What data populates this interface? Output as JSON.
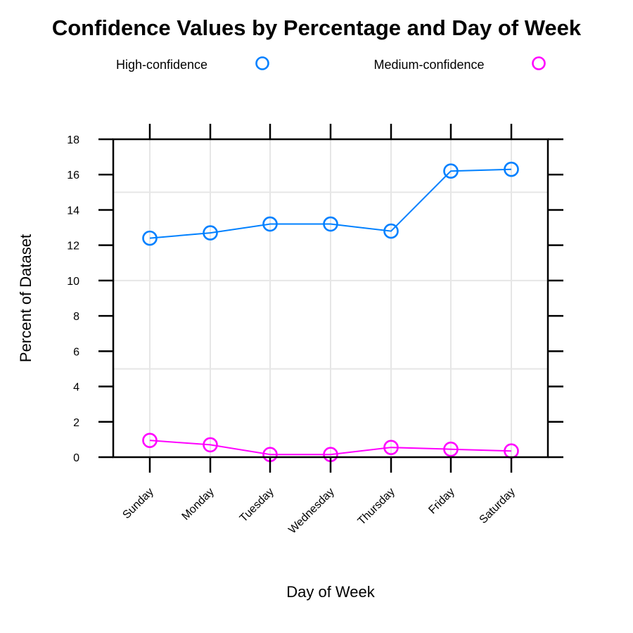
{
  "chart_data": {
    "type": "line",
    "title": "Confidence Values by Percentage and Day of Week",
    "xlabel": "Day of Week",
    "ylabel": "Percent of Dataset",
    "categories": [
      "Sunday",
      "Monday",
      "Tuesday",
      "Wednesday",
      "Thursday",
      "Friday",
      "Saturday"
    ],
    "ylim": [
      0,
      18
    ],
    "yticks": [
      0,
      2,
      4,
      6,
      8,
      10,
      12,
      14,
      16,
      18
    ],
    "gridlines_y": [
      5,
      10,
      15
    ],
    "grid": true,
    "legend_position": "top",
    "series": [
      {
        "name": "High-confidence",
        "color": "#0080ff",
        "marker": "open-circle",
        "values": [
          12.4,
          12.7,
          13.2,
          13.2,
          12.8,
          16.2,
          16.3
        ]
      },
      {
        "name": "Medium-confidence",
        "color": "#ff00ff",
        "marker": "open-circle",
        "values": [
          0.95,
          0.7,
          0.15,
          0.15,
          0.55,
          0.45,
          0.35
        ]
      }
    ]
  }
}
